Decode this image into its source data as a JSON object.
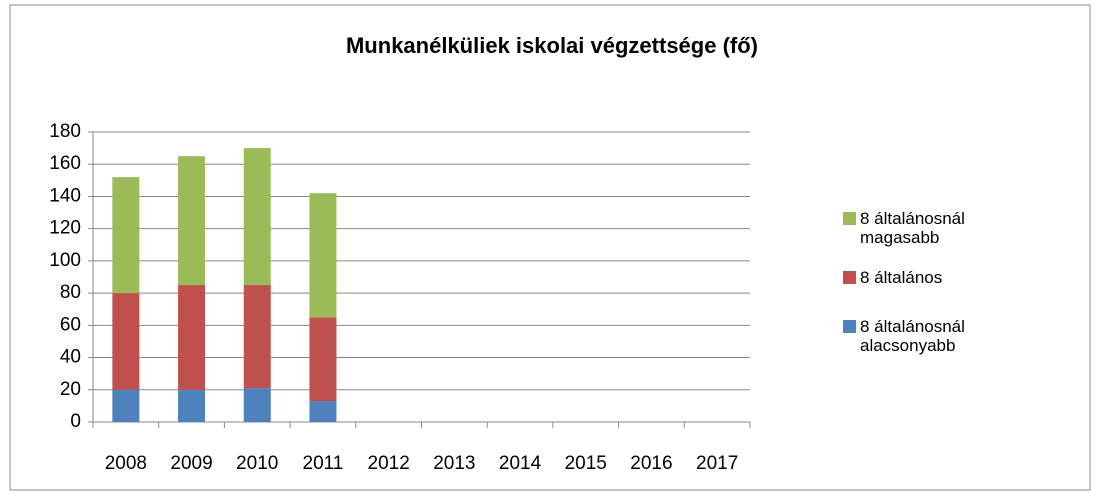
{
  "chart_data": {
    "type": "stacked_bar",
    "title": "Munkanélküliek iskolai végzettsége (fő)",
    "categories": [
      "2008",
      "2009",
      "2010",
      "2011",
      "2012",
      "2013",
      "2014",
      "2015",
      "2016",
      "2017"
    ],
    "series": [
      {
        "name": "8 általánosnál alacsonyabb",
        "color": "#4f81bd",
        "values": [
          20,
          20,
          21,
          13,
          null,
          null,
          null,
          null,
          null,
          null
        ]
      },
      {
        "name": "8 általános",
        "color": "#c0504d",
        "values": [
          60,
          65,
          64,
          52,
          null,
          null,
          null,
          null,
          null,
          null
        ]
      },
      {
        "name": "8 általánosnál magasabb",
        "color": "#9bbb59",
        "values": [
          72,
          80,
          85,
          77,
          null,
          null,
          null,
          null,
          null,
          null
        ]
      }
    ],
    "ylim": [
      0,
      180
    ],
    "yticks": [
      0,
      20,
      40,
      60,
      80,
      100,
      120,
      140,
      160,
      180
    ],
    "grid": true,
    "legend": "right"
  }
}
